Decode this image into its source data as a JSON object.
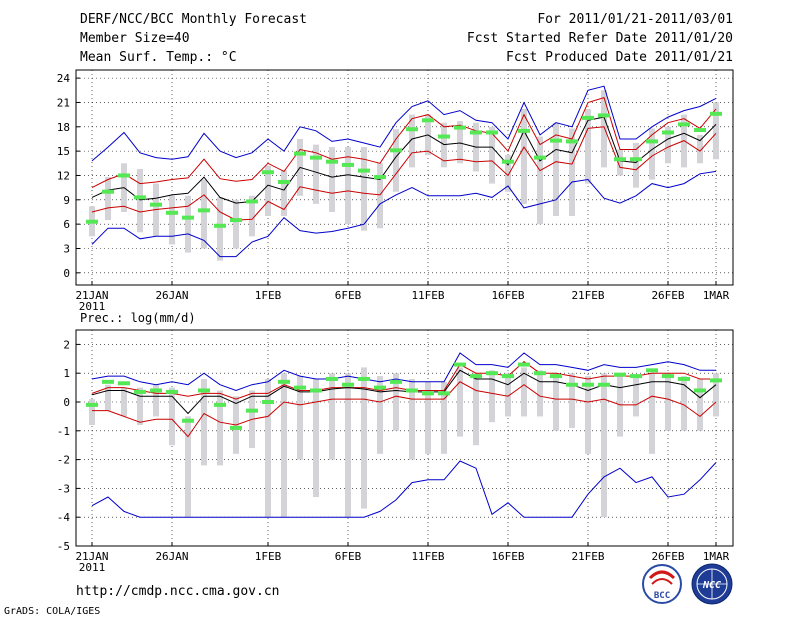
{
  "header": {
    "title": "DERF/NCC/BCC Monthly Forecast",
    "member_size": "Member Size=40",
    "variable1": "Mean Surf. Temp.: °C",
    "period": "For 2011/01/21-2011/03/01",
    "refer_date": "Fcst Started Refer Date 2011/01/20",
    "produced_date": "Fcst Produced Date 2011/01/21"
  },
  "footer": {
    "url": "http://cmdp.ncc.cma.gov.cn",
    "credit": "GrADS: COLA/IGES",
    "logo_bcc": "BCC",
    "logo_ncc": "NCC"
  },
  "colors": {
    "ensemble_bar": "#d3d3d8",
    "mean_marker": "#55e855",
    "envelope": "#0000cc",
    "spread": "#cc0000",
    "median": "#000000",
    "grid": "#000000"
  },
  "x_tick_labels": [
    "21JAN",
    "26JAN",
    "1FEB",
    "6FEB",
    "11FEB",
    "16FEB",
    "21FEB",
    "26FEB",
    "1MAR"
  ],
  "x_year_label": "2011",
  "chart_data": [
    {
      "type": "line",
      "title": "Mean Surf. Temp.: °C",
      "ylabel": "°C",
      "ylim": [
        -1.5,
        25
      ],
      "yticks": [
        0,
        3,
        6,
        9,
        12,
        15,
        18,
        21,
        24
      ],
      "x": [
        "01-21",
        "01-22",
        "01-23",
        "01-24",
        "01-25",
        "01-26",
        "01-27",
        "01-28",
        "01-29",
        "01-30",
        "01-31",
        "02-01",
        "02-02",
        "02-03",
        "02-04",
        "02-05",
        "02-06",
        "02-07",
        "02-08",
        "02-09",
        "02-10",
        "02-11",
        "02-12",
        "02-13",
        "02-14",
        "02-15",
        "02-16",
        "02-17",
        "02-18",
        "02-19",
        "02-20",
        "02-21",
        "02-22",
        "02-23",
        "02-24",
        "02-25",
        "02-26",
        "02-27",
        "02-28",
        "03-01"
      ],
      "series": [
        {
          "name": "ensemble max",
          "values": [
            13.8,
            15.5,
            17.3,
            14.8,
            14.2,
            14.0,
            14.3,
            17.2,
            15.0,
            14.2,
            14.8,
            16.5,
            15.0,
            18.0,
            17.5,
            16.2,
            16.5,
            16.0,
            15.5,
            18.5,
            20.5,
            21.2,
            19.5,
            20.0,
            18.8,
            18.5,
            16.5,
            21.0,
            17.0,
            18.5,
            18.0,
            22.5,
            23.0,
            16.5,
            16.5,
            18.0,
            19.2,
            20.0,
            20.5,
            21.5
          ]
        },
        {
          "name": "upper spread",
          "values": [
            10.5,
            11.5,
            12.2,
            11.0,
            11.2,
            11.5,
            11.7,
            14.0,
            11.6,
            11.3,
            11.5,
            13.5,
            12.5,
            15.2,
            14.8,
            14.0,
            14.3,
            14.0,
            13.5,
            16.5,
            19.0,
            19.5,
            18.0,
            18.2,
            17.5,
            17.2,
            15.0,
            19.5,
            15.8,
            17.0,
            16.5,
            21.0,
            21.6,
            15.2,
            15.2,
            17.0,
            18.5,
            19.0,
            17.8,
            20.2
          ]
        },
        {
          "name": "ensemble median",
          "values": [
            9.3,
            10.2,
            10.5,
            9.0,
            9.2,
            9.6,
            9.8,
            11.8,
            9.3,
            8.6,
            8.8,
            10.8,
            10.2,
            13.0,
            12.4,
            11.8,
            12.1,
            11.8,
            11.5,
            14.3,
            16.5,
            17.0,
            15.8,
            16.0,
            15.5,
            15.5,
            13.3,
            17.5,
            13.8,
            15.2,
            14.8,
            18.8,
            19.2,
            13.8,
            13.6,
            15.2,
            16.5,
            17.2,
            16.3,
            18.3
          ]
        },
        {
          "name": "lower spread",
          "values": [
            7.5,
            8.0,
            8.2,
            7.5,
            7.8,
            8.0,
            8.2,
            9.6,
            7.5,
            6.5,
            6.6,
            8.8,
            7.8,
            10.6,
            10.2,
            9.8,
            10.1,
            9.8,
            9.6,
            12.2,
            14.8,
            15.0,
            13.8,
            14.0,
            13.7,
            13.8,
            12.0,
            15.5,
            12.6,
            13.7,
            13.4,
            17.8,
            18.0,
            13.0,
            12.7,
            14.4,
            15.5,
            16.3,
            15.0,
            17.2
          ]
        },
        {
          "name": "ensemble min",
          "values": [
            3.5,
            5.5,
            5.5,
            4.2,
            4.5,
            4.5,
            4.8,
            4.0,
            2.0,
            2.0,
            3.8,
            4.5,
            6.8,
            5.2,
            4.9,
            5.1,
            5.5,
            6.0,
            8.5,
            9.6,
            10.5,
            9.5,
            9.5,
            9.5,
            9.8,
            9.3,
            10.7,
            8.0,
            8.5,
            9.0,
            11.2,
            11.5,
            9.2,
            8.6,
            9.5,
            11.0,
            10.5,
            11.0,
            12.2,
            12.5
          ]
        },
        {
          "name": "ensemble mean",
          "values": [
            6.3,
            10.0,
            12.0,
            9.3,
            8.4,
            7.4,
            6.8,
            7.7,
            5.8,
            6.5,
            8.8,
            12.4,
            11.2,
            14.7,
            14.2,
            13.7,
            13.3,
            12.6,
            11.8,
            15.1,
            17.7,
            18.8,
            16.8,
            17.9,
            17.3,
            17.3,
            13.7,
            17.5,
            14.2,
            16.3,
            16.2,
            19.1,
            19.4,
            14.0,
            14.0,
            16.2,
            17.3,
            18.3,
            17.6,
            19.6
          ]
        },
        {
          "name": "bar upper",
          "values": [
            8.2,
            11.8,
            13.5,
            12.8,
            11.0,
            9.5,
            9.5,
            11.5,
            9.3,
            9.0,
            9.5,
            13.2,
            12.7,
            16.5,
            15.8,
            15.5,
            15.5,
            15.5,
            13.5,
            17.7,
            19.5,
            19.5,
            18.5,
            18.7,
            18.5,
            18.0,
            14.5,
            20.2,
            16.8,
            18.5,
            17.8,
            20.2,
            22.5,
            15.2,
            16.0,
            17.8,
            18.0,
            19.5,
            17.0,
            21.0
          ]
        },
        {
          "name": "bar lower",
          "values": [
            4.5,
            6.5,
            7.5,
            5.0,
            4.5,
            3.5,
            2.5,
            3.0,
            1.5,
            3.0,
            4.5,
            7.0,
            7.0,
            9.5,
            8.5,
            7.5,
            6.0,
            5.2,
            5.5,
            10.0,
            13.0,
            14.5,
            13.0,
            13.5,
            12.5,
            11.0,
            10.0,
            8.5,
            6.0,
            7.0,
            7.0,
            11.0,
            13.0,
            12.0,
            10.5,
            11.5,
            13.5,
            13.0,
            13.5,
            14.0
          ]
        }
      ]
    },
    {
      "type": "line",
      "title": "Prec.: log(mm/d)",
      "ylabel": "log(mm/d)",
      "ylim": [
        -5,
        2.5
      ],
      "yticks": [
        -5,
        -4,
        -3,
        -2,
        -1,
        0,
        1,
        2
      ],
      "x": [
        "01-21",
        "01-22",
        "01-23",
        "01-24",
        "01-25",
        "01-26",
        "01-27",
        "01-28",
        "01-29",
        "01-30",
        "01-31",
        "02-01",
        "02-02",
        "02-03",
        "02-04",
        "02-05",
        "02-06",
        "02-07",
        "02-08",
        "02-09",
        "02-10",
        "02-11",
        "02-12",
        "02-13",
        "02-14",
        "02-15",
        "02-16",
        "02-17",
        "02-18",
        "02-19",
        "02-20",
        "02-21",
        "02-22",
        "02-23",
        "02-24",
        "02-25",
        "02-26",
        "02-27",
        "02-28",
        "03-01"
      ],
      "series": [
        {
          "name": "ensemble max",
          "values": [
            0.8,
            0.9,
            0.9,
            0.7,
            0.6,
            0.7,
            0.6,
            1.0,
            0.6,
            0.4,
            0.6,
            0.7,
            1.1,
            0.9,
            0.8,
            0.8,
            0.9,
            0.8,
            0.7,
            0.8,
            0.7,
            0.7,
            0.7,
            1.7,
            1.3,
            1.3,
            1.2,
            1.7,
            1.3,
            1.3,
            1.2,
            1.1,
            1.3,
            1.2,
            1.2,
            1.3,
            1.4,
            1.3,
            1.1,
            1.1
          ]
        },
        {
          "name": "upper spread",
          "values": [
            0.3,
            0.5,
            0.5,
            0.4,
            0.3,
            0.3,
            0.2,
            0.3,
            0.3,
            0.1,
            0.3,
            0.3,
            0.6,
            0.4,
            0.4,
            0.5,
            0.5,
            0.5,
            0.4,
            0.5,
            0.4,
            0.4,
            0.4,
            1.3,
            1.0,
            1.0,
            0.9,
            1.4,
            1.0,
            1.0,
            0.9,
            0.8,
            0.9,
            0.9,
            0.9,
            1.0,
            1.0,
            1.0,
            0.8,
            0.8
          ]
        },
        {
          "name": "ensemble median",
          "values": [
            0.25,
            0.4,
            0.4,
            0.2,
            0.2,
            0.2,
            -0.4,
            0.2,
            0.2,
            -0.05,
            0.2,
            0.2,
            0.55,
            0.35,
            0.35,
            0.45,
            0.5,
            0.45,
            0.35,
            0.4,
            0.35,
            0.35,
            0.35,
            1.1,
            0.8,
            0.8,
            0.6,
            1.0,
            0.7,
            0.7,
            0.6,
            0.4,
            0.6,
            0.5,
            0.6,
            0.7,
            0.7,
            0.6,
            0.15,
            0.6
          ]
        },
        {
          "name": "lower spread",
          "values": [
            -0.3,
            -0.3,
            -0.5,
            -0.7,
            -0.6,
            -0.6,
            -1.2,
            -0.4,
            -0.7,
            -0.8,
            -0.6,
            -0.5,
            0.0,
            -0.1,
            0.0,
            0.1,
            0.1,
            0.1,
            0.0,
            0.2,
            0.1,
            0.1,
            0.1,
            0.7,
            0.4,
            0.3,
            0.2,
            0.6,
            0.2,
            0.1,
            0.1,
            0.0,
            0.1,
            -0.1,
            -0.1,
            0.2,
            0.1,
            -0.1,
            -0.5,
            0.0
          ]
        },
        {
          "name": "ensemble min",
          "values": [
            -3.6,
            -3.3,
            -3.8,
            -4.0,
            -4.0,
            -4.0,
            -4.0,
            -4.0,
            -4.0,
            -4.0,
            -4.0,
            -4.0,
            -4.0,
            -4.0,
            -4.0,
            -4.0,
            -4.0,
            -4.0,
            -3.8,
            -3.4,
            -2.8,
            -2.7,
            -2.7,
            -2.05,
            -2.3,
            -3.9,
            -3.5,
            -4.0,
            -4.0,
            -4.0,
            -4.0,
            -3.2,
            -2.6,
            -2.3,
            -2.8,
            -2.6,
            -3.3,
            -3.2,
            -2.7,
            -2.1
          ]
        },
        {
          "name": "ensemble mean",
          "values": [
            -0.1,
            0.7,
            0.65,
            0.35,
            0.4,
            0.35,
            -0.65,
            0.4,
            -0.1,
            -0.9,
            -0.3,
            0.0,
            0.7,
            0.5,
            0.4,
            0.8,
            0.6,
            0.8,
            0.5,
            0.7,
            0.4,
            0.3,
            0.3,
            1.3,
            0.9,
            1.0,
            0.9,
            1.3,
            1.0,
            0.9,
            0.6,
            0.6,
            0.6,
            0.95,
            0.9,
            1.1,
            0.9,
            0.8,
            0.4,
            0.75
          ]
        },
        {
          "name": "bar upper",
          "values": [
            0.1,
            0.6,
            0.5,
            0.5,
            0.6,
            0.5,
            -0.5,
            0.8,
            0.4,
            0.2,
            0.4,
            0.8,
            1.0,
            0.9,
            0.8,
            1.0,
            1.0,
            1.2,
            0.9,
            1.0,
            0.8,
            0.7,
            0.7,
            1.2,
            1.0,
            1.1,
            1.0,
            1.2,
            1.1,
            1.0,
            1.0,
            0.9,
            1.0,
            1.0,
            0.9,
            1.0,
            1.0,
            0.9,
            0.8,
            1.0
          ]
        },
        {
          "name": "bar lower",
          "values": [
            -0.8,
            -0.3,
            -0.5,
            -0.8,
            -0.5,
            -1.5,
            -4.0,
            -2.2,
            -2.2,
            -1.8,
            -1.6,
            -4.0,
            -4.0,
            -2.0,
            -3.3,
            -2.0,
            -4.0,
            -3.7,
            -1.8,
            -1.0,
            -2.0,
            -1.8,
            -1.8,
            -1.2,
            -1.5,
            -0.7,
            -0.5,
            -0.5,
            -0.5,
            -1.0,
            -0.9,
            -1.8,
            -4.0,
            -1.2,
            -0.5,
            -1.8,
            -1.0,
            -1.0,
            -1.0,
            -0.5
          ]
        }
      ]
    }
  ]
}
